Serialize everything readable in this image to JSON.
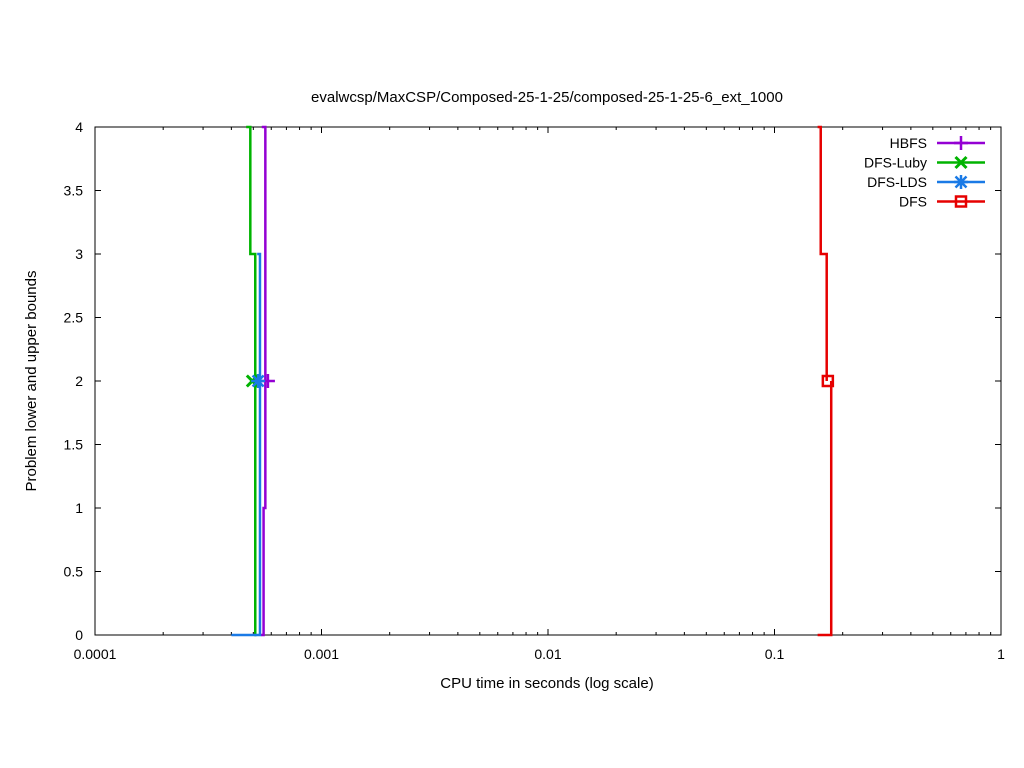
{
  "chart_data": {
    "type": "line",
    "title": "evalwcsp/MaxCSP/Composed-25-1-25/composed-25-1-25-6_ext_1000",
    "xlabel": "CPU time in seconds (log scale)",
    "ylabel": "Problem lower and upper bounds",
    "x_scale": "log",
    "xlim": [
      0.0001,
      1
    ],
    "ylim": [
      0,
      4
    ],
    "x_ticks": [
      0.0001,
      0.001,
      0.01,
      0.1,
      1
    ],
    "x_tick_labels": [
      "0.0001",
      "0.001",
      "0.01",
      "0.1",
      "1"
    ],
    "y_ticks": [
      0,
      0.5,
      1,
      1.5,
      2,
      2.5,
      3,
      3.5,
      4
    ],
    "y_tick_labels": [
      "0",
      "0.5",
      "1",
      "1.5",
      "2",
      "2.5",
      "3",
      "3.5",
      "4"
    ],
    "grid": false,
    "legend_position": "top-right",
    "series": [
      {
        "name": "HBFS",
        "color": "#9400d3",
        "marker": "plus",
        "step_style": "post",
        "upper": [
          {
            "x": 0.000545,
            "y": 4
          },
          {
            "x": 0.000565,
            "y": 2
          }
        ],
        "lower": [
          {
            "x": 0.00054,
            "y": 0
          },
          {
            "x": 0.000555,
            "y": 1
          },
          {
            "x": 0.000565,
            "y": 2
          }
        ],
        "markers": [
          {
            "x": 0.00058,
            "y": 2
          }
        ]
      },
      {
        "name": "DFS-Luby",
        "color": "#00b300",
        "marker": "x",
        "step_style": "post",
        "upper": [
          {
            "x": 0.000465,
            "y": 4
          },
          {
            "x": 0.000485,
            "y": 3
          },
          {
            "x": 0.00051,
            "y": 2
          }
        ],
        "lower": [
          {
            "x": 0.000505,
            "y": 0
          },
          {
            "x": 0.00051,
            "y": 2
          }
        ],
        "markers": [
          {
            "x": 0.000495,
            "y": 2
          }
        ]
      },
      {
        "name": "DFS-LDS",
        "color": "#1a7ae6",
        "marker": "star",
        "step_style": "post",
        "upper": [
          {
            "x": 0.00052,
            "y": 3
          },
          {
            "x": 0.000535,
            "y": 2
          }
        ],
        "lower": [
          {
            "x": 0.0004,
            "y": 0
          },
          {
            "x": 0.000535,
            "y": 2
          }
        ],
        "markers": [
          {
            "x": 0.000525,
            "y": 2
          }
        ]
      },
      {
        "name": "DFS",
        "color": "#e60000",
        "marker": "square",
        "step_style": "post",
        "upper": [
          {
            "x": 0.155,
            "y": 4
          },
          {
            "x": 0.16,
            "y": 3
          },
          {
            "x": 0.17,
            "y": 2
          }
        ],
        "lower": [
          {
            "x": 0.155,
            "y": 0
          },
          {
            "x": 0.178,
            "y": 0
          },
          {
            "x": 0.178,
            "y": 2
          }
        ],
        "markers": [
          {
            "x": 0.172,
            "y": 2
          }
        ]
      }
    ]
  }
}
